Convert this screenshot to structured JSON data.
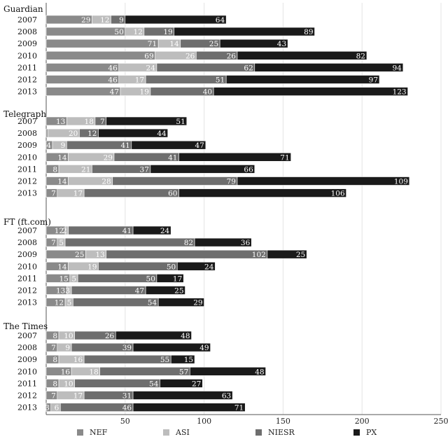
{
  "chart_data": {
    "type": "bar",
    "orientation": "horizontal",
    "stacked": true,
    "title": "",
    "xlabel": "",
    "ylabel": "",
    "xlim": [
      0,
      250
    ],
    "x_ticks": [
      50,
      100,
      150,
      200,
      250
    ],
    "grid": true,
    "legend_position": "bottom",
    "series": [
      {
        "name": "NEF",
        "color": "#8a8a8a"
      },
      {
        "name": "ASI",
        "color": "#bdbdbd"
      },
      {
        "name": "NIESR",
        "color": "#6e6e6e"
      },
      {
        "name": "PX",
        "color": "#1a1a1a"
      }
    ],
    "groups": [
      {
        "name": "Guardian",
        "rows": [
          {
            "year": "2007",
            "values": [
              29,
              12,
              9,
              64
            ]
          },
          {
            "year": "2008",
            "values": [
              50,
              12,
              19,
              89
            ]
          },
          {
            "year": "2009",
            "values": [
              71,
              14,
              25,
              43
            ]
          },
          {
            "year": "2010",
            "values": [
              69,
              26,
              26,
              82
            ]
          },
          {
            "year": "2011",
            "values": [
              46,
              24,
              62,
              94
            ]
          },
          {
            "year": "2012",
            "values": [
              46,
              17,
              51,
              97
            ]
          },
          {
            "year": "2013",
            "values": [
              47,
              19,
              40,
              123
            ]
          }
        ]
      },
      {
        "name": "Telegraph",
        "rows": [
          {
            "year": "2007",
            "values": [
              13,
              18,
              7,
              51
            ]
          },
          {
            "year": "2008",
            "values": [
              1,
              20,
              12,
              44
            ]
          },
          {
            "year": "2009",
            "values": [
              4,
              9,
              41,
              47
            ]
          },
          {
            "year": "2010",
            "values": [
              14,
              29,
              41,
              71
            ]
          },
          {
            "year": "2011",
            "values": [
              8,
              21,
              37,
              66
            ]
          },
          {
            "year": "2012",
            "values": [
              14,
              28,
              79,
              109
            ]
          },
          {
            "year": "2013",
            "values": [
              7,
              17,
              60,
              106
            ]
          }
        ]
      },
      {
        "name": "FT (ft.com)",
        "rows": [
          {
            "year": "2007",
            "values": [
              12,
              2,
              41,
              24
            ]
          },
          {
            "year": "2008",
            "values": [
              7,
              5,
              82,
              36
            ]
          },
          {
            "year": "2009",
            "values": [
              25,
              13,
              102,
              25
            ]
          },
          {
            "year": "2010",
            "values": [
              14,
              19,
              50,
              24
            ]
          },
          {
            "year": "2011",
            "values": [
              15,
              5,
              50,
              17
            ]
          },
          {
            "year": "2012",
            "values": [
              13,
              3,
              47,
              25
            ]
          },
          {
            "year": "2013",
            "values": [
              12,
              5,
              54,
              29
            ]
          }
        ]
      },
      {
        "name": "The Times",
        "rows": [
          {
            "year": "2007",
            "values": [
              8,
              10,
              26,
              48
            ]
          },
          {
            "year": "2008",
            "values": [
              7,
              9,
              39,
              49
            ]
          },
          {
            "year": "2009",
            "values": [
              8,
              16,
              55,
              15
            ]
          },
          {
            "year": "2010",
            "values": [
              16,
              18,
              57,
              48
            ]
          },
          {
            "year": "2011",
            "values": [
              8,
              10,
              54,
              27
            ]
          },
          {
            "year": "2012",
            "values": [
              7,
              17,
              31,
              63
            ]
          },
          {
            "year": "2013",
            "values": [
              3,
              6,
              46,
              71
            ]
          }
        ]
      }
    ]
  }
}
